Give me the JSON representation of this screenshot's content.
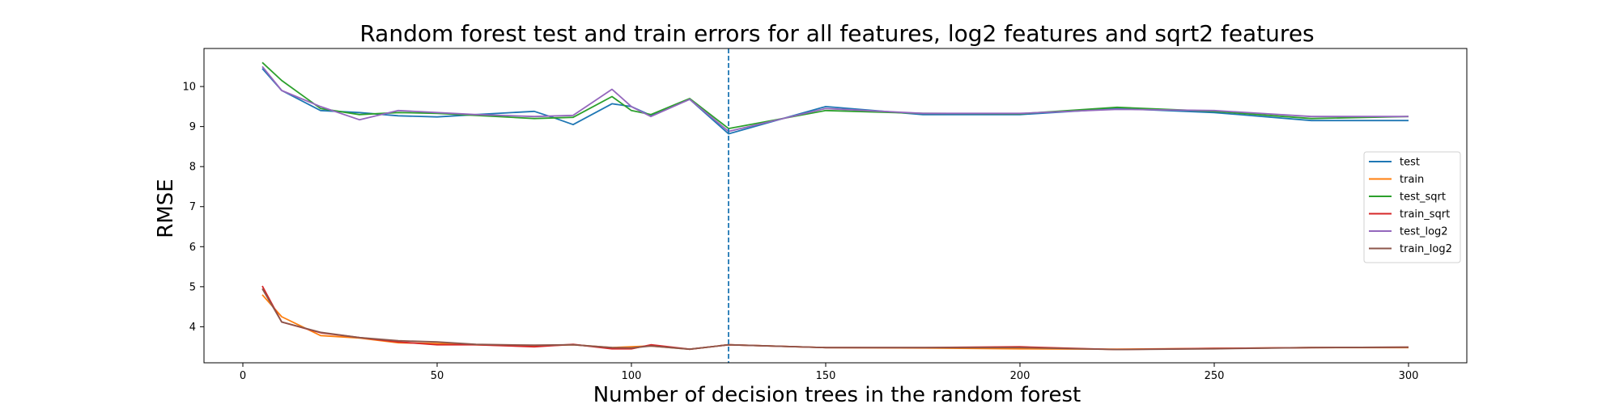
{
  "chart_data": {
    "type": "line",
    "title": "Random forest test and train errors for all features, log2 features and sqrt2 features",
    "xlabel": "Number of decision trees in the random forest",
    "ylabel": "RMSE",
    "xlim": [
      -10,
      315
    ],
    "ylim": [
      3.1,
      10.95
    ],
    "xticks": [
      0,
      50,
      100,
      150,
      200,
      250,
      300
    ],
    "yticks": [
      4,
      5,
      6,
      7,
      8,
      9,
      10
    ],
    "grid": false,
    "legend_position": "center-right",
    "vline": {
      "x": 125,
      "color": "#1f77b4",
      "style": "dashed"
    },
    "series": [
      {
        "name": "test",
        "color": "#1f77b4",
        "x": [
          5,
          10,
          20,
          30,
          40,
          50,
          60,
          75,
          80,
          85,
          95,
          100,
          105,
          115,
          125,
          150,
          175,
          200,
          225,
          250,
          275,
          300
        ],
        "y": [
          10.45,
          9.9,
          9.4,
          9.35,
          9.27,
          9.24,
          9.3,
          9.38,
          9.22,
          9.05,
          9.57,
          9.5,
          9.28,
          9.68,
          8.82,
          9.5,
          9.3,
          9.3,
          9.45,
          9.35,
          9.15,
          9.15
        ]
      },
      {
        "name": "train",
        "color": "#ff7f0e",
        "x": [
          5,
          10,
          20,
          30,
          40,
          50,
          60,
          75,
          85,
          95,
          100,
          105,
          115,
          125,
          150,
          175,
          200,
          225,
          250,
          275,
          300
        ],
        "y": [
          4.8,
          4.25,
          3.78,
          3.72,
          3.6,
          3.58,
          3.55,
          3.52,
          3.55,
          3.48,
          3.5,
          3.52,
          3.44,
          3.55,
          3.48,
          3.47,
          3.45,
          3.44,
          3.46,
          3.48,
          3.48
        ]
      },
      {
        "name": "test_sqrt",
        "color": "#2ca02c",
        "x": [
          5,
          10,
          20,
          30,
          40,
          50,
          60,
          75,
          85,
          95,
          100,
          105,
          115,
          125,
          150,
          175,
          200,
          225,
          250,
          275,
          300
        ],
        "y": [
          10.6,
          10.15,
          9.45,
          9.3,
          9.35,
          9.33,
          9.28,
          9.2,
          9.23,
          9.75,
          9.4,
          9.3,
          9.7,
          8.95,
          9.4,
          9.33,
          9.32,
          9.48,
          9.38,
          9.2,
          9.25
        ]
      },
      {
        "name": "train_sqrt",
        "color": "#d62728",
        "x": [
          5,
          10,
          20,
          30,
          40,
          50,
          60,
          75,
          85,
          95,
          100,
          105,
          115,
          125,
          150,
          175,
          200,
          225,
          250,
          275,
          300
        ],
        "y": [
          5.02,
          4.12,
          3.85,
          3.73,
          3.62,
          3.55,
          3.55,
          3.5,
          3.56,
          3.45,
          3.45,
          3.55,
          3.44,
          3.55,
          3.48,
          3.48,
          3.5,
          3.43,
          3.46,
          3.48,
          3.49
        ]
      },
      {
        "name": "test_log2",
        "color": "#9467bd",
        "x": [
          5,
          10,
          20,
          30,
          40,
          50,
          60,
          75,
          85,
          95,
          100,
          105,
          115,
          125,
          150,
          175,
          200,
          225,
          250,
          275,
          300
        ],
        "y": [
          10.5,
          9.9,
          9.5,
          9.17,
          9.4,
          9.35,
          9.3,
          9.25,
          9.28,
          9.93,
          9.5,
          9.25,
          9.68,
          8.88,
          9.45,
          9.33,
          9.33,
          9.43,
          9.4,
          9.25,
          9.25
        ]
      },
      {
        "name": "train_log2",
        "color": "#8c564b",
        "x": [
          5,
          10,
          20,
          30,
          40,
          50,
          60,
          75,
          85,
          95,
          100,
          105,
          115,
          125,
          150,
          175,
          200,
          225,
          250,
          275,
          300
        ],
        "y": [
          4.95,
          4.12,
          3.86,
          3.73,
          3.65,
          3.62,
          3.56,
          3.54,
          3.55,
          3.48,
          3.47,
          3.52,
          3.44,
          3.55,
          3.48,
          3.48,
          3.48,
          3.43,
          3.45,
          3.48,
          3.49
        ]
      }
    ]
  }
}
